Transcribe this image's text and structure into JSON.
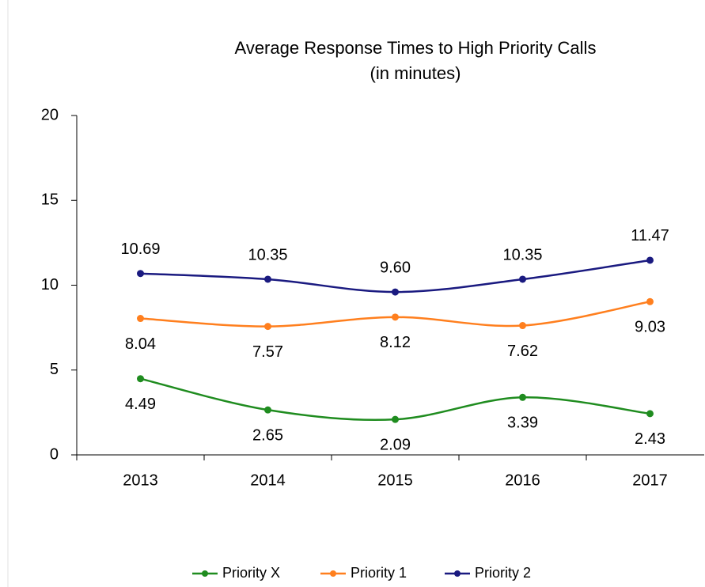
{
  "chart_data": {
    "type": "line",
    "title": "Average Response Times to High Priority Calls",
    "subtitle": "(in minutes)",
    "categories": [
      "2013",
      "2014",
      "2015",
      "2016",
      "2017"
    ],
    "series": [
      {
        "name": "Priority X",
        "color": "#1f8c1f",
        "values": [
          4.49,
          2.65,
          2.09,
          3.39,
          2.43
        ],
        "value_labels": [
          "4.49",
          "2.65",
          "2.09",
          "3.39",
          "2.43"
        ],
        "label_position": "below"
      },
      {
        "name": "Priority 1",
        "color": "#ff7f1e",
        "values": [
          8.04,
          7.57,
          8.12,
          7.62,
          9.03
        ],
        "value_labels": [
          "8.04",
          "7.57",
          "8.12",
          "7.62",
          "9.03"
        ],
        "label_position": "below"
      },
      {
        "name": "Priority 2",
        "color": "#1a1a80",
        "values": [
          10.69,
          10.35,
          9.6,
          10.35,
          11.47
        ],
        "value_labels": [
          "10.69",
          "10.35",
          "9.60",
          "10.35",
          "11.47"
        ],
        "label_position": "above"
      }
    ],
    "ylim": [
      0,
      20
    ],
    "yticks": [
      0,
      5,
      10,
      15,
      20
    ],
    "smooth": true,
    "legend": "bottom"
  }
}
